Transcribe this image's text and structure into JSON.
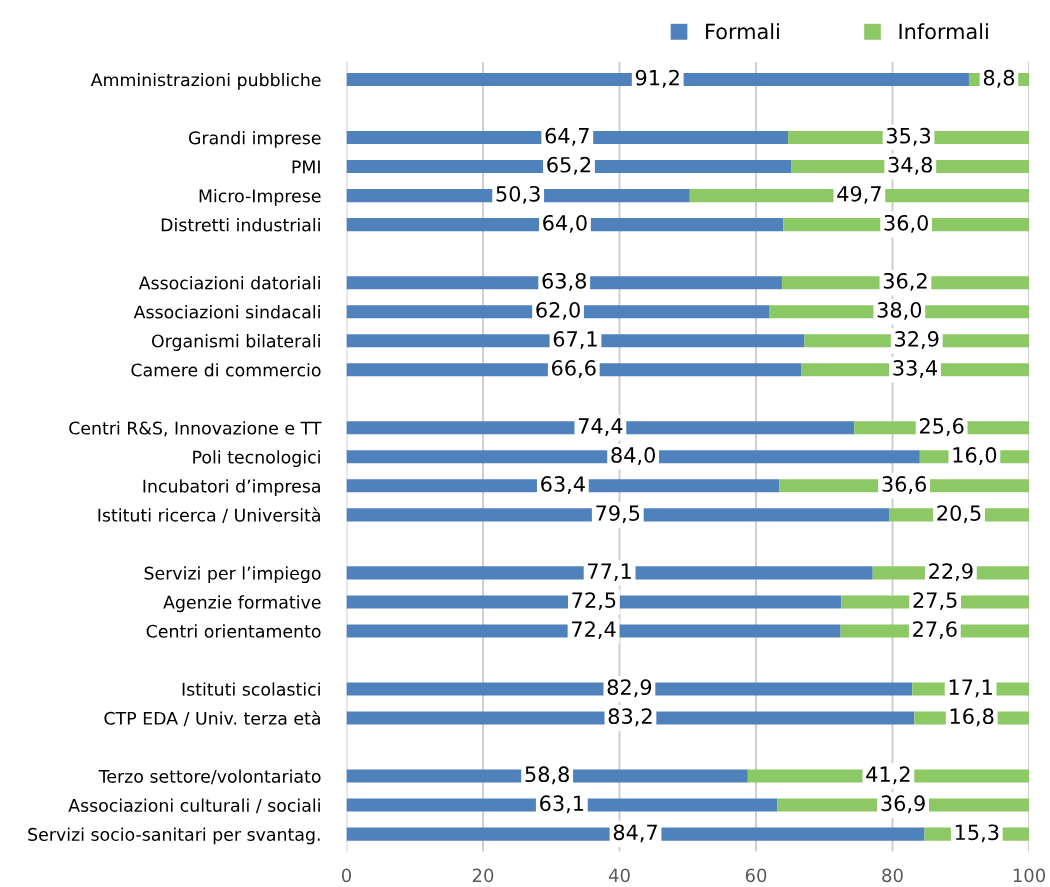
{
  "chart_data": {
    "type": "bar",
    "orientation": "horizontal",
    "stacked": true,
    "categories": [
      "Amministrazioni pubbliche",
      null,
      "Grandi imprese",
      "PMI",
      "Micro-Imprese",
      "Distretti industriali",
      null,
      "Associazioni datoriali",
      "Associazioni sindacali",
      "Organismi bilaterali",
      "Camere di commercio",
      null,
      "Centri R&S, Innovazione e TT",
      "Poli tecnologici",
      "Incubatori d’impresa",
      "Istituti ricerca / Università",
      null,
      "Servizi per l’impiego",
      "Agenzie formative",
      "Centri orientamento",
      null,
      "Istituti scolastici",
      "CTP EDA / Univ. terza età",
      null,
      "Terzo settore/volontariato",
      "Associazioni culturali / sociali",
      "Servizi socio-sanitari per svantag."
    ],
    "series": [
      {
        "name": "Formali",
        "color": "#4f81bd",
        "values": [
          91.2,
          null,
          64.7,
          65.2,
          50.3,
          64.0,
          null,
          63.8,
          62.0,
          67.1,
          66.6,
          null,
          74.4,
          84.0,
          63.4,
          79.5,
          null,
          77.1,
          72.5,
          72.4,
          null,
          82.9,
          83.2,
          null,
          58.8,
          63.1,
          84.7
        ],
        "value_labels": [
          "91,2",
          null,
          "64,7",
          "65,2",
          "50,3",
          "64,0",
          null,
          "63,8",
          "62,0",
          "67,1",
          "66,6",
          null,
          "74,4",
          "84,0",
          "63,4",
          "79,5",
          null,
          "77,1",
          "72,5",
          "72,4",
          null,
          "82,9",
          "83,2",
          null,
          "58,8",
          "63,1",
          "84,7"
        ]
      },
      {
        "name": "Informali",
        "color": "#8cc864",
        "values": [
          8.8,
          null,
          35.3,
          34.8,
          49.7,
          36.0,
          null,
          36.2,
          38.0,
          32.9,
          33.4,
          null,
          25.6,
          16.0,
          36.6,
          20.5,
          null,
          22.9,
          27.5,
          27.6,
          null,
          17.1,
          16.8,
          null,
          41.2,
          36.9,
          15.3
        ],
        "value_labels": [
          "8,8",
          null,
          "35,3",
          "34,8",
          "49,7",
          "36,0",
          null,
          "36,2",
          "38,0",
          "32,9",
          "33,4",
          null,
          "25,6",
          "16,0",
          "36,6",
          "20,5",
          null,
          "22,9",
          "27,5",
          "27,6",
          null,
          "17,1",
          "16,8",
          null,
          "41,2",
          "36,9",
          "15,3"
        ]
      }
    ],
    "xlim": [
      0,
      100
    ],
    "xticks": [
      0,
      20,
      40,
      60,
      80,
      100
    ],
    "grid": "x",
    "legend": "top right"
  }
}
